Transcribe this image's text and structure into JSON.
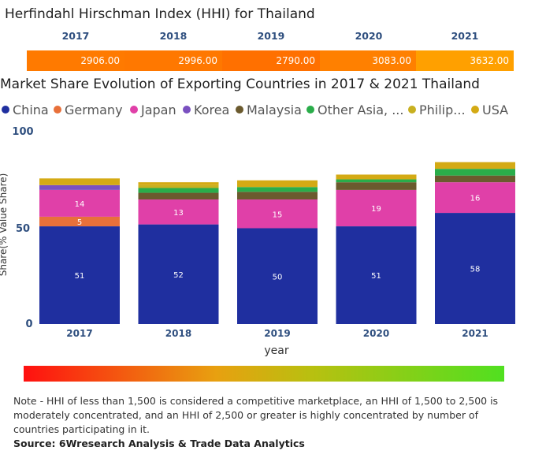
{
  "hhi": {
    "title": "Herfindahl Hirschman Index (HHI) for Thailand",
    "years": [
      "2017",
      "2018",
      "2019",
      "2020",
      "2021"
    ],
    "values": [
      "2906.00",
      "2996.00",
      "2790.00",
      "3083.00",
      "3632.00"
    ],
    "colors": [
      "#ff7a00",
      "#ff7800",
      "#ff7000",
      "#ff8000",
      "#ffa000"
    ]
  },
  "chart_data": {
    "type": "bar",
    "stacked": true,
    "title": "Market Share Evolution of Exporting Countries in 2017 & 2021 Thailand",
    "xlabel": "year",
    "ylabel": "Share(% Value Share)",
    "ylim": [
      0,
      100
    ],
    "yticks": [
      "0",
      "50",
      "100"
    ],
    "legend_position": "top",
    "categories": [
      "2017",
      "2018",
      "2019",
      "2020",
      "2021"
    ],
    "series": [
      {
        "name": "China",
        "color": "#1f2f9f",
        "values": [
          51,
          52,
          50,
          51,
          58
        ],
        "labels": [
          "51",
          "52",
          "50",
          "51",
          "58"
        ]
      },
      {
        "name": "Germany",
        "color": "#e8703a",
        "values": [
          5,
          0,
          0,
          0,
          0
        ],
        "labels": [
          "5",
          "",
          "",
          "",
          ""
        ]
      },
      {
        "name": "Japan",
        "color": "#e040a8",
        "values": [
          14,
          13,
          15,
          19,
          16
        ],
        "labels": [
          "14",
          "13",
          "15",
          "19",
          "16"
        ]
      },
      {
        "name": "Korea",
        "color": "#7a50c0",
        "values": [
          2.5,
          0,
          0,
          0,
          0
        ],
        "labels": [
          "",
          "",
          "",
          "",
          ""
        ]
      },
      {
        "name": "Malaysia",
        "color": "#6b5a2e",
        "values": [
          0,
          3.5,
          4,
          4,
          3.5
        ],
        "labels": [
          "",
          "",
          "",
          "",
          ""
        ]
      },
      {
        "name": "Other Asia, ...",
        "color": "#2aad4a",
        "values": [
          0,
          2.5,
          2.5,
          1.5,
          3.5
        ],
        "labels": [
          "",
          "",
          "",
          "",
          ""
        ]
      },
      {
        "name": "Philip...",
        "color": "#c8b020",
        "values": [
          0,
          1.5,
          0,
          0,
          0
        ],
        "labels": [
          "",
          "",
          "",
          "",
          ""
        ]
      },
      {
        "name": "USA",
        "color": "#d4aa14",
        "values": [
          3.5,
          1.5,
          3.5,
          2.5,
          3.5
        ],
        "labels": [
          "",
          "",
          "",
          "",
          ""
        ]
      }
    ]
  },
  "note": "Note - HHI of less than 1,500 is considered a competitive marketplace, an HHI of 1,500 to 2,500 is moderately concentrated, and an HHI of 2,500 or greater is highly concentrated by number of countries participating in it.",
  "source": "Source: 6Wresearch Analysis & Trade Data Analytics"
}
